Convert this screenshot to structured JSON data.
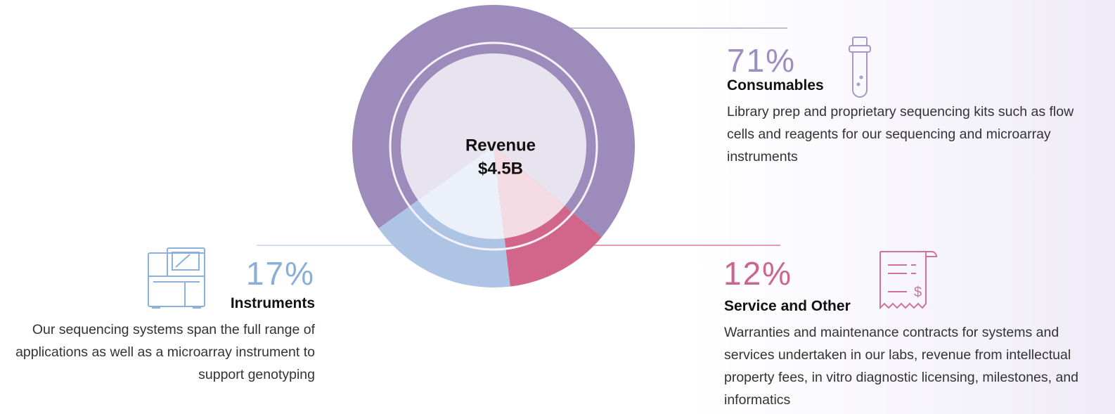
{
  "chart_data": {
    "type": "donut",
    "center_title": "Revenue",
    "center_value": "$4.5B",
    "categories": [
      "Consumables",
      "Instruments",
      "Service and Other"
    ],
    "values": [
      71,
      17,
      12
    ],
    "value_labels": [
      "71%",
      "17%",
      "12%"
    ],
    "colors": [
      "#9d8cbb",
      "#aec4e4",
      "#d2668a"
    ],
    "label_colors": [
      "#9e8dbf",
      "#8aaed8",
      "#cc6490"
    ],
    "descriptions": [
      "Library prep and proprietary sequencing kits such as flow cells and reagents for our sequencing and microarray instruments",
      "Our sequencing systems span the full range of applications as well as a microarray instrument to support genotyping",
      "Warranties and maintenance contracts for systems and services undertaken in our labs, revenue from intellectual property fees, in vitro diagnostic licensing, milestones, and informatics"
    ]
  }
}
